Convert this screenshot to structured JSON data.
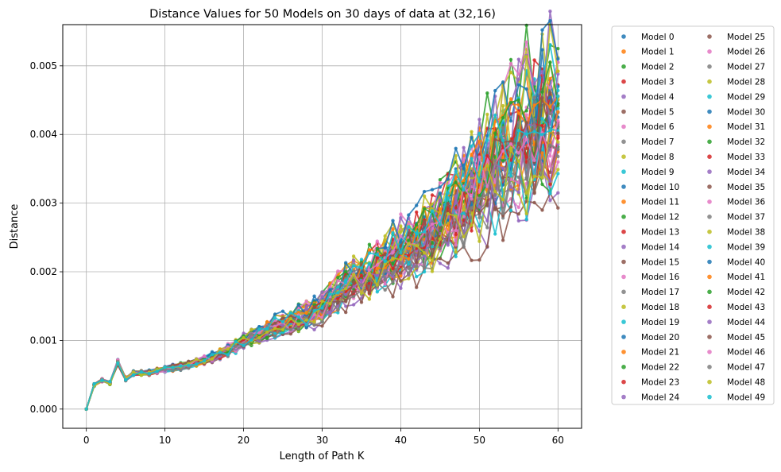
{
  "chart_data": {
    "type": "line",
    "title": "Distance Values for 50 Models on 30 days of data at (32,16)",
    "xlabel": "Length of Path K",
    "ylabel": "Distance",
    "xlim": [
      -3,
      63
    ],
    "ylim": [
      -0.00028,
      0.0056
    ],
    "xticks": [
      0,
      10,
      20,
      30,
      40,
      50,
      60
    ],
    "xtick_labels": [
      "0",
      "10",
      "20",
      "30",
      "40",
      "50",
      "60"
    ],
    "yticks": [
      0,
      0.001,
      0.002,
      0.003,
      0.004,
      0.005
    ],
    "ytick_labels": [
      "0.000",
      "0.001",
      "0.002",
      "0.003",
      "0.004",
      "0.005"
    ],
    "grid": true,
    "legend": {
      "placement": "outside-right",
      "columns": 2
    },
    "palette": [
      "#1f77b4",
      "#ff7f0e",
      "#2ca02c",
      "#d62728",
      "#9467bd",
      "#8c564b",
      "#e377c2",
      "#7f7f7f",
      "#bcbd22",
      "#17becf"
    ],
    "x": [
      0,
      1,
      2,
      3,
      4,
      5,
      6,
      7,
      8,
      9,
      10,
      11,
      12,
      13,
      14,
      15,
      16,
      17,
      18,
      19,
      20,
      21,
      22,
      23,
      24,
      25,
      26,
      27,
      28,
      29,
      30,
      31,
      32,
      33,
      34,
      35,
      36,
      37,
      38,
      39,
      40,
      41,
      42,
      43,
      44,
      45,
      46,
      47,
      48,
      49,
      50,
      51,
      52,
      53,
      54,
      55,
      56,
      57,
      58,
      59,
      60
    ],
    "reference_curve": {
      "x": [
        0,
        1,
        2,
        3,
        4,
        5,
        6,
        8,
        10,
        12,
        14,
        16,
        18,
        20,
        22,
        24,
        26,
        28,
        30,
        32,
        34,
        36,
        38,
        40,
        42,
        44,
        46,
        48,
        50,
        52,
        54,
        56,
        58,
        60
      ],
      "y": [
        0,
        0.00035,
        0.00042,
        0.00038,
        0.00068,
        0.00044,
        0.00052,
        0.00053,
        0.00058,
        0.00062,
        0.00068,
        0.00075,
        0.00085,
        0.00098,
        0.00108,
        0.0012,
        0.00125,
        0.00133,
        0.00145,
        0.00168,
        0.0019,
        0.00195,
        0.0021,
        0.00225,
        0.0024,
        0.00255,
        0.00275,
        0.003,
        0.00325,
        0.0035,
        0.0037,
        0.0039,
        0.00405,
        0.00415
      ]
    },
    "series": [
      {
        "name": "Model 0"
      },
      {
        "name": "Model 1"
      },
      {
        "name": "Model 2"
      },
      {
        "name": "Model 3"
      },
      {
        "name": "Model 4"
      },
      {
        "name": "Model 5"
      },
      {
        "name": "Model 6"
      },
      {
        "name": "Model 7"
      },
      {
        "name": "Model 8"
      },
      {
        "name": "Model 9"
      },
      {
        "name": "Model 10"
      },
      {
        "name": "Model 11"
      },
      {
        "name": "Model 12"
      },
      {
        "name": "Model 13"
      },
      {
        "name": "Model 14"
      },
      {
        "name": "Model 15"
      },
      {
        "name": "Model 16"
      },
      {
        "name": "Model 17"
      },
      {
        "name": "Model 18"
      },
      {
        "name": "Model 19"
      },
      {
        "name": "Model 20"
      },
      {
        "name": "Model 21"
      },
      {
        "name": "Model 22"
      },
      {
        "name": "Model 23"
      },
      {
        "name": "Model 24"
      },
      {
        "name": "Model 25"
      },
      {
        "name": "Model 26"
      },
      {
        "name": "Model 27"
      },
      {
        "name": "Model 28"
      },
      {
        "name": "Model 29"
      },
      {
        "name": "Model 30"
      },
      {
        "name": "Model 31"
      },
      {
        "name": "Model 32"
      },
      {
        "name": "Model 33"
      },
      {
        "name": "Model 34"
      },
      {
        "name": "Model 35"
      },
      {
        "name": "Model 36"
      },
      {
        "name": "Model 37"
      },
      {
        "name": "Model 38"
      },
      {
        "name": "Model 39"
      },
      {
        "name": "Model 40"
      },
      {
        "name": "Model 41"
      },
      {
        "name": "Model 42"
      },
      {
        "name": "Model 43"
      },
      {
        "name": "Model 44"
      },
      {
        "name": "Model 45"
      },
      {
        "name": "Model 46"
      },
      {
        "name": "Model 47"
      },
      {
        "name": "Model 48"
      },
      {
        "name": "Model 49"
      }
    ],
    "final_values": [
      0.00432,
      0.00415,
      0.00525,
      0.00472,
      0.00315,
      0.00395,
      0.0045,
      0.00408,
      0.00512,
      0.00438,
      0.00425,
      0.00492,
      0.00382,
      0.00418,
      0.00505,
      0.00293,
      0.0036,
      0.00401,
      0.00451,
      0.00343,
      0.0047,
      0.00375,
      0.00442,
      0.00398,
      0.00415,
      0.00412,
      0.00505,
      0.00368,
      0.00349,
      0.00464,
      0.00402,
      0.00433,
      0.00411,
      0.00445,
      0.00488,
      0.00378,
      0.00395,
      0.00412,
      0.00492,
      0.00405,
      0.0051,
      0.00455,
      0.00445,
      0.00395,
      0.00386,
      0.00402,
      0.0042,
      0.00379,
      0.00389,
      0.00456
    ]
  }
}
